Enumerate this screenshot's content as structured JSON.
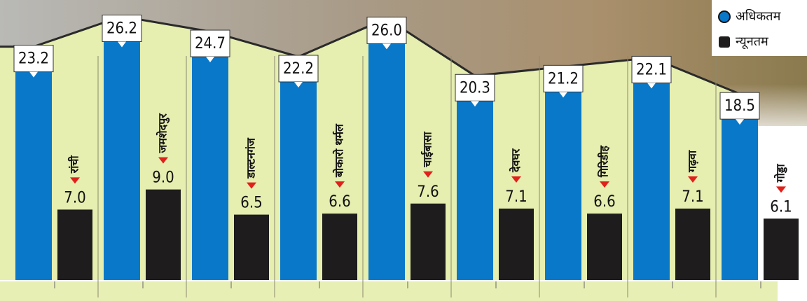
{
  "chart_data": {
    "type": "bar",
    "categories": [
      "रांची",
      "जमशेदपुर",
      "डाल्टनगंज",
      "बोकारो थर्मल",
      "चाईबासा",
      "देवघर",
      "गिरिडीह",
      "गढ़वा",
      "गोड्डा"
    ],
    "series": [
      {
        "name": "अधिकतम",
        "color": "#0a78c8",
        "values": [
          23.2,
          26.2,
          24.7,
          22.2,
          26.0,
          20.3,
          21.2,
          22.1,
          18.5
        ],
        "value_labels": [
          "23.2",
          "26.2",
          "24.7",
          "22.2",
          "26.0",
          "20.3",
          "21.2",
          "22.1",
          "18.5"
        ]
      },
      {
        "name": "न्यूनतम",
        "color": "#1e1c1c",
        "values": [
          7.0,
          9.0,
          6.5,
          6.6,
          7.6,
          7.1,
          6.6,
          7.1,
          6.1
        ],
        "value_labels": [
          "7.0",
          "9.0",
          "6.5",
          "6.6",
          "7.6",
          "7.1",
          "6.6",
          "7.1",
          "6.1"
        ]
      }
    ],
    "ylim": [
      0,
      27
    ]
  }
}
